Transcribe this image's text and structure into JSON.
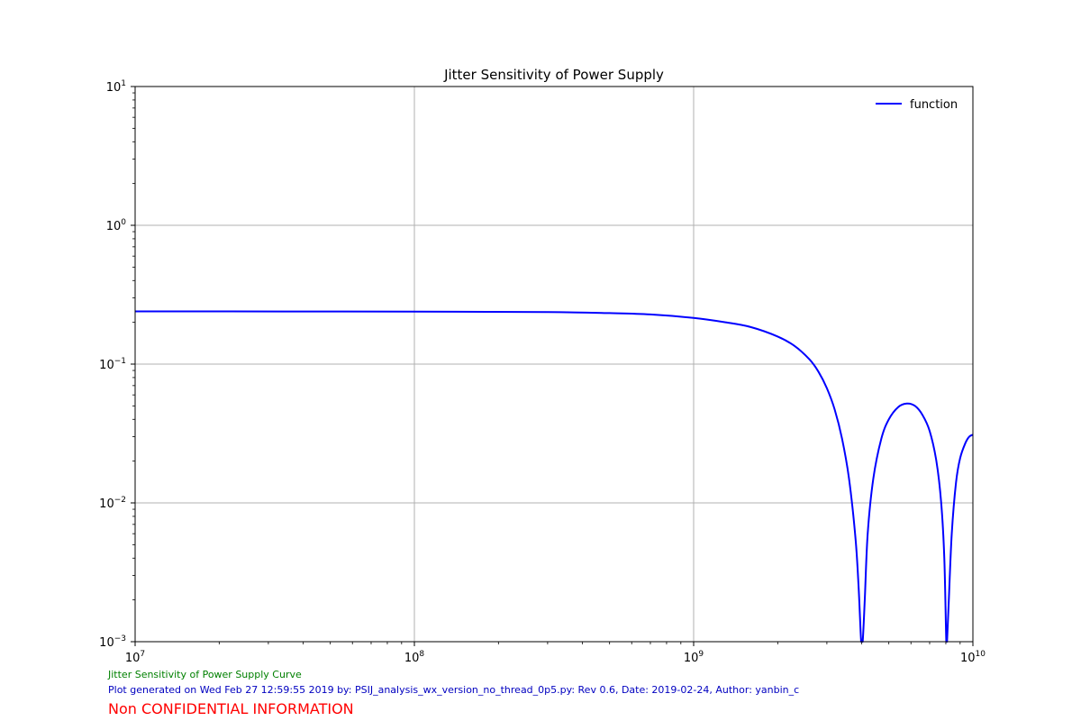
{
  "chart_data": {
    "type": "line",
    "title": "Jitter Sensitivity of Power Supply",
    "xlabel": "",
    "ylabel": "",
    "xscale": "log",
    "yscale": "log",
    "xlim": [
      10000000,
      10000000000
    ],
    "ylim": [
      0.001,
      10
    ],
    "grid": true,
    "legend_position": "upper-right",
    "x_ticks": [
      {
        "value": 10000000,
        "base": "10",
        "exp": "7"
      },
      {
        "value": 100000000,
        "base": "10",
        "exp": "8"
      },
      {
        "value": 1000000000,
        "base": "10",
        "exp": "9"
      },
      {
        "value": 10000000000,
        "base": "10",
        "exp": "10"
      }
    ],
    "y_ticks": [
      {
        "value": 0.001,
        "base": "10",
        "exp": "−3"
      },
      {
        "value": 0.01,
        "base": "10",
        "exp": "−2"
      },
      {
        "value": 0.1,
        "base": "10",
        "exp": "−1"
      },
      {
        "value": 1,
        "base": "10",
        "exp": "0"
      },
      {
        "value": 10,
        "base": "10",
        "exp": "1"
      }
    ],
    "series": [
      {
        "name": "function",
        "color": "#0000ff",
        "x": [
          10000000,
          100000000,
          300000000,
          500000000,
          700000000,
          1000000000,
          1300000000,
          1600000000,
          2000000000,
          2300000000,
          2600000000,
          2800000000,
          3000000000,
          3200000000,
          3400000000,
          3600000000,
          3800000000,
          3900000000,
          3980000000,
          4030000000,
          4100000000,
          4200000000,
          4400000000,
          4700000000,
          5000000000,
          5400000000,
          5800000000,
          6200000000,
          6600000000,
          7000000000,
          7400000000,
          7700000000,
          7900000000,
          8030000000,
          8080000000,
          8200000000,
          8400000000,
          8700000000,
          9000000000,
          9400000000,
          9700000000,
          10000000000
        ],
        "y": [
          0.24,
          0.239,
          0.237,
          0.233,
          0.228,
          0.215,
          0.2,
          0.185,
          0.158,
          0.135,
          0.108,
          0.088,
          0.067,
          0.047,
          0.029,
          0.015,
          0.0055,
          0.0024,
          0.0008,
          0.0006,
          0.002,
          0.006,
          0.015,
          0.029,
          0.04,
          0.049,
          0.052,
          0.05,
          0.043,
          0.033,
          0.02,
          0.01,
          0.004,
          0.0008,
          0.0006,
          0.002,
          0.006,
          0.014,
          0.021,
          0.027,
          0.03,
          0.031
        ]
      }
    ]
  },
  "footer": {
    "caption": "Jitter  Sensitivity of Power Supply Curve",
    "generated": "Plot generated on Wed Feb 27 12:59:55 2019 by: PSIJ_analysis_wx_version_no_thread_0p5.py: Rev 0.6, Date: 2019-02-24, Author: yanbin_c",
    "confidential": "Non CONFIDENTIAL INFORMATION"
  },
  "colors": {
    "line": "#0000ff",
    "grid": "#b0b0b0",
    "caption": "#008000",
    "generated": "#0000c0",
    "confidential": "#ff0000"
  }
}
